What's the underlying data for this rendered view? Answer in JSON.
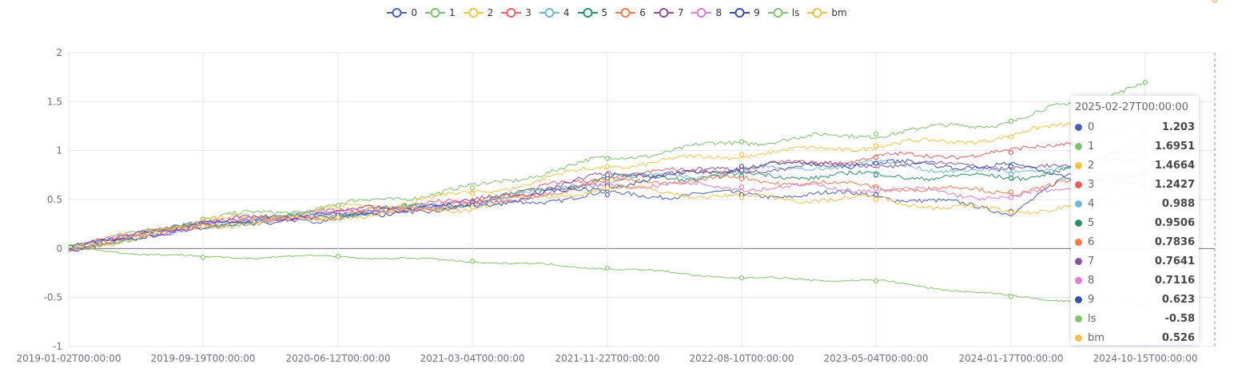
{
  "legend": [
    {
      "name": "0",
      "color": "#4a5fb3"
    },
    {
      "name": "1",
      "color": "#7cc36a"
    },
    {
      "name": "2",
      "color": "#f6c244"
    },
    {
      "name": "3",
      "color": "#e85e5e"
    },
    {
      "name": "4",
      "color": "#6cb8d8"
    },
    {
      "name": "5",
      "color": "#2a8f6b"
    },
    {
      "name": "6",
      "color": "#f27a4a"
    },
    {
      "name": "7",
      "color": "#8a4ea3"
    },
    {
      "name": "8",
      "color": "#e07bcf"
    },
    {
      "name": "9",
      "color": "#3c4fa8"
    },
    {
      "name": "ls",
      "color": "#82c46a"
    },
    {
      "name": "bm",
      "color": "#f5bd4a"
    }
  ],
  "chart_data": {
    "type": "line",
    "ylim": [
      -1,
      2
    ],
    "yticks": [
      "2",
      "1.5",
      "1",
      "0.5",
      "0",
      "-0.5",
      "-1"
    ],
    "x_ticks": [
      "2019-01-02T00:00:00",
      "2019-09-19T00:00:00",
      "2020-06-12T00:00:00",
      "2021-03-04T00:00:00",
      "2021-11-22T00:00:00",
      "2022-08-10T00:00:00",
      "2023-05-04T00:00:00",
      "2024-01-17T00:00:00",
      "2024-10-15T00:00:00"
    ],
    "x_end": "2025-02-27T00:00:00",
    "grid": true,
    "legend_position": "top-center",
    "series": [
      {
        "name": "0",
        "values": [
          0.0,
          0.24,
          0.32,
          0.44,
          0.55,
          0.55,
          0.55,
          0.38,
          1.203
        ]
      },
      {
        "name": "1",
        "values": [
          0.0,
          0.3,
          0.44,
          0.62,
          0.92,
          1.09,
          1.17,
          1.3,
          1.6951
        ]
      },
      {
        "name": "2",
        "values": [
          0.0,
          0.28,
          0.4,
          0.56,
          0.84,
          0.96,
          1.05,
          1.14,
          1.4664
        ]
      },
      {
        "name": "3",
        "values": [
          0.0,
          0.26,
          0.37,
          0.48,
          0.74,
          0.82,
          0.93,
          0.98,
          1.2427
        ]
      },
      {
        "name": "4",
        "values": [
          0.0,
          0.25,
          0.36,
          0.45,
          0.7,
          0.79,
          0.87,
          0.76,
          0.988
        ]
      },
      {
        "name": "5",
        "values": [
          0.0,
          0.25,
          0.35,
          0.47,
          0.72,
          0.74,
          0.75,
          0.72,
          0.9506
        ]
      },
      {
        "name": "6",
        "values": [
          0.0,
          0.25,
          0.35,
          0.46,
          0.68,
          0.71,
          0.63,
          0.58,
          0.7836
        ]
      },
      {
        "name": "7",
        "values": [
          0.0,
          0.26,
          0.37,
          0.47,
          0.75,
          0.8,
          0.87,
          0.84,
          0.7641
        ]
      },
      {
        "name": "8",
        "values": [
          0.0,
          0.25,
          0.36,
          0.45,
          0.66,
          0.63,
          0.61,
          0.52,
          0.7116
        ]
      },
      {
        "name": "9",
        "values": [
          0.0,
          0.24,
          0.34,
          0.44,
          0.64,
          0.84,
          0.87,
          0.84,
          0.623
        ]
      },
      {
        "name": "ls",
        "values": [
          0.0,
          -0.09,
          -0.08,
          -0.13,
          -0.2,
          -0.3,
          -0.33,
          -0.49,
          -0.58
        ]
      },
      {
        "name": "bm",
        "values": [
          0.0,
          0.23,
          0.32,
          0.42,
          0.62,
          0.52,
          0.5,
          0.37,
          0.526
        ]
      }
    ]
  },
  "tooltip": {
    "title": "2025-02-27T00:00:00",
    "rows": [
      {
        "name": "0",
        "value": "1.203"
      },
      {
        "name": "1",
        "value": "1.6951"
      },
      {
        "name": "2",
        "value": "1.4664"
      },
      {
        "name": "3",
        "value": "1.2427"
      },
      {
        "name": "4",
        "value": "0.988"
      },
      {
        "name": "5",
        "value": "0.9506"
      },
      {
        "name": "6",
        "value": "0.7836"
      },
      {
        "name": "7",
        "value": "0.7641"
      },
      {
        "name": "8",
        "value": "0.7116"
      },
      {
        "name": "9",
        "value": "0.623"
      },
      {
        "name": "ls",
        "value": "-0.58"
      },
      {
        "name": "bm",
        "value": "0.526"
      }
    ]
  }
}
